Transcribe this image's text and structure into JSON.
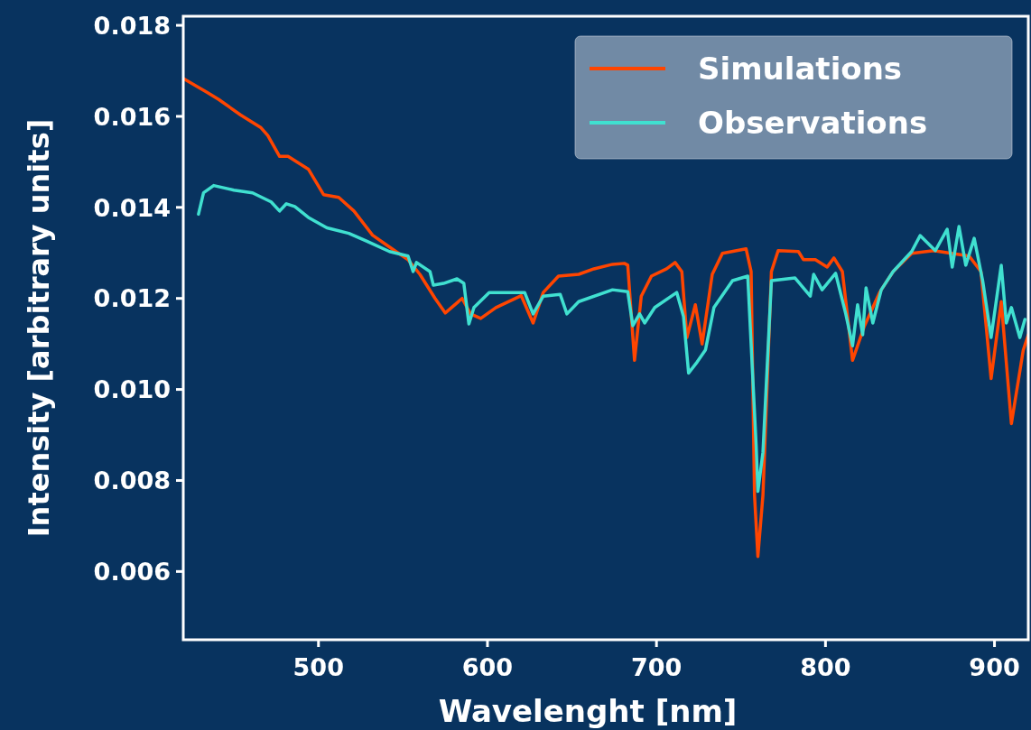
{
  "chart_data": {
    "type": "line",
    "xlabel": "Wavelenght [nm]",
    "ylabel": "Intensity [arbitrary units]",
    "xlim": [
      420,
      920
    ],
    "xticks": [
      500,
      600,
      700,
      800,
      900
    ],
    "ylim": [
      0.0045,
      0.0182
    ],
    "yticks": [
      {
        "value": 0.006,
        "label": "0.006"
      },
      {
        "value": 0.008,
        "label": "0.008"
      },
      {
        "value": 0.01,
        "label": "0.010"
      },
      {
        "value": 0.012,
        "label": "0.012"
      },
      {
        "value": 0.014,
        "label": "0.014"
      },
      {
        "value": 0.016,
        "label": "0.016"
      },
      {
        "value": 0.018,
        "label": "0.018"
      }
    ],
    "grid": false,
    "legend": "top right",
    "line_style": "solid",
    "marker": "none",
    "series": [
      {
        "name": "Simulations",
        "color": "#ff4500",
        "x": [
          420,
          434,
          441,
          454,
          466,
          470,
          477,
          482,
          494,
          503,
          512,
          521,
          532,
          542,
          553,
          560,
          569,
          575,
          585,
          590,
          596,
          605,
          620,
          627,
          633,
          642,
          654,
          663,
          674,
          681,
          683,
          687,
          691,
          697,
          706,
          711,
          715,
          718,
          723,
          727,
          733,
          739,
          753,
          756,
          758,
          760,
          763,
          768,
          772,
          784,
          787,
          794,
          801,
          805,
          810,
          816,
          823,
          832,
          840,
          851,
          864,
          885,
          892,
          898,
          904,
          910,
          917,
          920
        ],
        "values": [
          0.01683,
          0.01653,
          0.01637,
          0.01603,
          0.01575,
          0.01558,
          0.01512,
          0.01512,
          0.01484,
          0.01428,
          0.01422,
          0.01392,
          0.01339,
          0.01313,
          0.01285,
          0.01253,
          0.012,
          0.01168,
          0.012,
          0.01166,
          0.01156,
          0.0118,
          0.01206,
          0.01146,
          0.01213,
          0.01249,
          0.01253,
          0.01265,
          0.01275,
          0.01277,
          0.01273,
          0.01064,
          0.01205,
          0.01249,
          0.01265,
          0.01279,
          0.01259,
          0.01114,
          0.01186,
          0.011,
          0.01253,
          0.01299,
          0.01309,
          0.01259,
          0.00768,
          0.00633,
          0.00768,
          0.01259,
          0.01305,
          0.01303,
          0.01285,
          0.01285,
          0.01269,
          0.01289,
          0.01259,
          0.01064,
          0.01139,
          0.01213,
          0.01259,
          0.01299,
          0.01305,
          0.01293,
          0.01259,
          0.01024,
          0.01193,
          0.00925,
          0.01086,
          0.0112
        ]
      },
      {
        "name": "Observations",
        "color": "#40e0d0",
        "x": [
          429,
          432,
          438,
          450,
          461,
          472,
          477,
          481,
          486,
          494,
          505,
          518,
          529,
          542,
          553,
          556,
          558,
          566,
          568,
          574,
          582,
          586,
          589,
          592,
          601,
          622,
          627,
          633,
          643,
          647,
          654,
          674,
          683,
          686,
          690,
          693,
          699,
          712,
          716,
          719,
          724,
          729,
          734,
          745,
          754,
          759,
          760,
          763,
          768,
          782,
          791,
          793,
          798,
          806,
          812,
          816,
          819,
          822,
          824,
          828,
          833,
          840,
          851,
          856,
          865,
          872,
          875,
          879,
          883,
          888,
          893,
          898,
          904,
          907,
          910,
          915,
          918
        ],
        "values": [
          0.01385,
          0.01432,
          0.01448,
          0.01438,
          0.01432,
          0.01412,
          0.01392,
          0.01408,
          0.01402,
          0.01378,
          0.01355,
          0.01343,
          0.01325,
          0.01303,
          0.01293,
          0.01259,
          0.01279,
          0.01259,
          0.01229,
          0.01233,
          0.01243,
          0.01233,
          0.01144,
          0.0118,
          0.01213,
          0.01213,
          0.01166,
          0.01205,
          0.01209,
          0.01166,
          0.01193,
          0.01219,
          0.01215,
          0.0114,
          0.01166,
          0.01146,
          0.0118,
          0.01213,
          0.0116,
          0.01036,
          0.0106,
          0.01087,
          0.0118,
          0.01239,
          0.01249,
          0.00875,
          0.00776,
          0.00862,
          0.01239,
          0.01245,
          0.01205,
          0.01253,
          0.01219,
          0.01255,
          0.01166,
          0.01096,
          0.01186,
          0.0112,
          0.01223,
          0.01146,
          0.01219,
          0.01259,
          0.01303,
          0.01338,
          0.01305,
          0.01352,
          0.01269,
          0.01358,
          0.01273,
          0.01332,
          0.01239,
          0.01114,
          0.01273,
          0.01146,
          0.0118,
          0.01114,
          0.01154
        ]
      }
    ]
  }
}
